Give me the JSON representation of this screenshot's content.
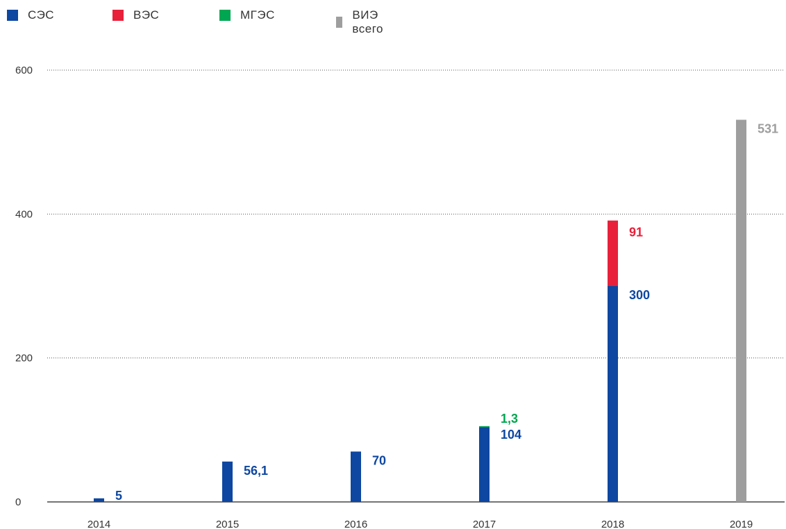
{
  "chart_data": {
    "type": "bar",
    "title": "",
    "xlabel": "",
    "ylabel": "",
    "ylim": [
      0,
      600
    ],
    "yticks": [
      0,
      200,
      400,
      600
    ],
    "grid": "dotted horizontal",
    "legend_position": "top-left",
    "categories": [
      "2014",
      "2015",
      "2016",
      "2017",
      "2018",
      "2019"
    ],
    "series": [
      {
        "name": "СЭС",
        "color": "#0d47a1",
        "values": [
          5,
          56.1,
          70,
          104,
          300,
          null
        ],
        "labels": [
          "5",
          "56,1",
          "70",
          "104",
          "300",
          ""
        ]
      },
      {
        "name": "ВЭС",
        "color": "#e8203a",
        "values": [
          null,
          null,
          null,
          null,
          91,
          null
        ],
        "labels": [
          "",
          "",
          "",
          "",
          "91",
          ""
        ]
      },
      {
        "name": "МГЭС",
        "color": "#00a651",
        "values": [
          null,
          null,
          null,
          1.3,
          null,
          null
        ],
        "labels": [
          "",
          "",
          "",
          "1,3",
          "",
          ""
        ]
      },
      {
        "name": "ВИЭ всего",
        "color": "#9e9e9e",
        "values": [
          null,
          null,
          null,
          null,
          null,
          531
        ],
        "labels": [
          "",
          "",
          "",
          "",
          "",
          "531"
        ]
      }
    ]
  }
}
